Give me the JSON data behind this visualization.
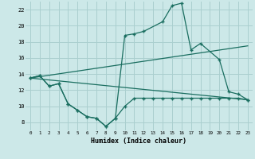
{
  "xlabel": "Humidex (Indice chaleur)",
  "bg_color": "#cce8e8",
  "grid_color": "#aacfcf",
  "line_color": "#1a6e60",
  "xlim": [
    -0.5,
    23.5
  ],
  "ylim": [
    7,
    23
  ],
  "yticks": [
    8,
    10,
    12,
    14,
    16,
    18,
    20,
    22
  ],
  "xticks": [
    0,
    1,
    2,
    3,
    4,
    5,
    6,
    7,
    8,
    9,
    10,
    11,
    12,
    13,
    14,
    15,
    16,
    17,
    18,
    19,
    20,
    21,
    22,
    23
  ],
  "line1_x": [
    0,
    1,
    2,
    3,
    4,
    5,
    6,
    7,
    8,
    9,
    10,
    11,
    12,
    14,
    15,
    16,
    17,
    18,
    20,
    21,
    22,
    23
  ],
  "line1_y": [
    13.5,
    13.8,
    12.5,
    12.8,
    10.3,
    9.5,
    8.7,
    8.5,
    7.5,
    8.5,
    18.8,
    19.0,
    19.3,
    20.5,
    22.5,
    22.8,
    17.0,
    17.8,
    15.8,
    11.8,
    11.5,
    10.8
  ],
  "line2_x": [
    0,
    1,
    2,
    3,
    4,
    5,
    6,
    7,
    8,
    9,
    10,
    11,
    12,
    13,
    14,
    15,
    16,
    17,
    18,
    19,
    20,
    21,
    22,
    23
  ],
  "line2_y": [
    13.5,
    13.8,
    12.5,
    12.8,
    10.3,
    9.5,
    8.7,
    8.5,
    7.5,
    8.5,
    10.0,
    11.0,
    11.0,
    11.0,
    11.0,
    11.0,
    11.0,
    11.0,
    11.0,
    11.0,
    11.0,
    11.0,
    11.0,
    10.8
  ],
  "line3_x": [
    0,
    23
  ],
  "line3_y": [
    13.5,
    17.5
  ],
  "line4_x": [
    0,
    23
  ],
  "line4_y": [
    13.5,
    10.8
  ]
}
